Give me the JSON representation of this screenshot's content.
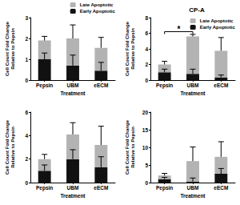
{
  "chart_data": [
    {
      "type": "bar",
      "stacked": true,
      "legend": "upper right",
      "grid": false,
      "categories": [
        "Pepsin",
        "UBM",
        "eECM"
      ],
      "xlabel": "Treatment",
      "ylabel": "Cell Count Fold Change Relative to Pepsin",
      "ylim": [
        0,
        3
      ],
      "yticks": [
        0,
        1,
        2,
        3
      ],
      "series": [
        {
          "name": "Early Apoptotic",
          "color": "#111111",
          "values": [
            1.0,
            0.7,
            0.45
          ],
          "errors": [
            0.3,
            0.5,
            0.4
          ]
        },
        {
          "name": "Late Apoptotic",
          "color": "#b3b3b3",
          "values": [
            0.9,
            1.3,
            1.1
          ],
          "errors": [
            0.2,
            0.65,
            0.5
          ]
        }
      ]
    },
    {
      "type": "bar",
      "stacked": true,
      "legend": "upper right",
      "grid": false,
      "title": "CP-A",
      "categories": [
        "Pepsin",
        "UBM",
        "eECM"
      ],
      "xlabel": "Treatment",
      "ylabel": "Cell Count Fold Change Relative to Pepsin",
      "ylim": [
        0,
        8
      ],
      "yticks": [
        0,
        2,
        4,
        6,
        8
      ],
      "series": [
        {
          "name": "Early Apoptotic",
          "color": "#111111",
          "values": [
            1.0,
            0.8,
            0.35
          ],
          "errors": [
            0.4,
            0.6,
            0.3
          ]
        },
        {
          "name": "Late Apoptotic",
          "color": "#b3b3b3",
          "values": [
            1.0,
            4.8,
            3.4
          ],
          "errors": [
            0.4,
            0.25,
            1.7
          ]
        }
      ],
      "annotations": [
        {
          "text": "*",
          "from": "Pepsin",
          "to": "UBM",
          "y": 6.2
        }
      ]
    },
    {
      "type": "bar",
      "stacked": true,
      "grid": false,
      "categories": [
        "Pepsin",
        "UBM",
        "eECM"
      ],
      "xlabel": "Treatment",
      "ylabel": "Cell Count Fold Change Relative to Pepsin",
      "ylim": [
        0,
        6
      ],
      "yticks": [
        0,
        2,
        4,
        6
      ],
      "series": [
        {
          "name": "Early Apoptotic",
          "color": "#111111",
          "values": [
            1.0,
            2.0,
            1.3
          ],
          "errors": [
            0.5,
            0.8,
            0.9
          ]
        },
        {
          "name": "Late Apoptotic",
          "color": "#b3b3b3",
          "values": [
            1.0,
            2.1,
            1.9
          ],
          "errors": [
            0.4,
            1.0,
            1.6
          ]
        }
      ]
    },
    {
      "type": "bar",
      "stacked": true,
      "grid": false,
      "categories": [
        "Pepsin",
        "UBM",
        "eECM"
      ],
      "xlabel": "Treatment",
      "ylabel": "Cell Count Fold Change Relative to Pepsin",
      "ylim": [
        0,
        20
      ],
      "yticks": [
        0,
        5,
        10,
        15,
        20
      ],
      "series": [
        {
          "name": "Early Apoptotic",
          "color": "#111111",
          "values": [
            1.0,
            0.3,
            2.5
          ],
          "errors": [
            0.5,
            1.0,
            1.5
          ]
        },
        {
          "name": "Late Apoptotic",
          "color": "#b3b3b3",
          "values": [
            1.0,
            5.8,
            4.8
          ],
          "errors": [
            0.6,
            4.0,
            4.3
          ]
        }
      ]
    }
  ]
}
